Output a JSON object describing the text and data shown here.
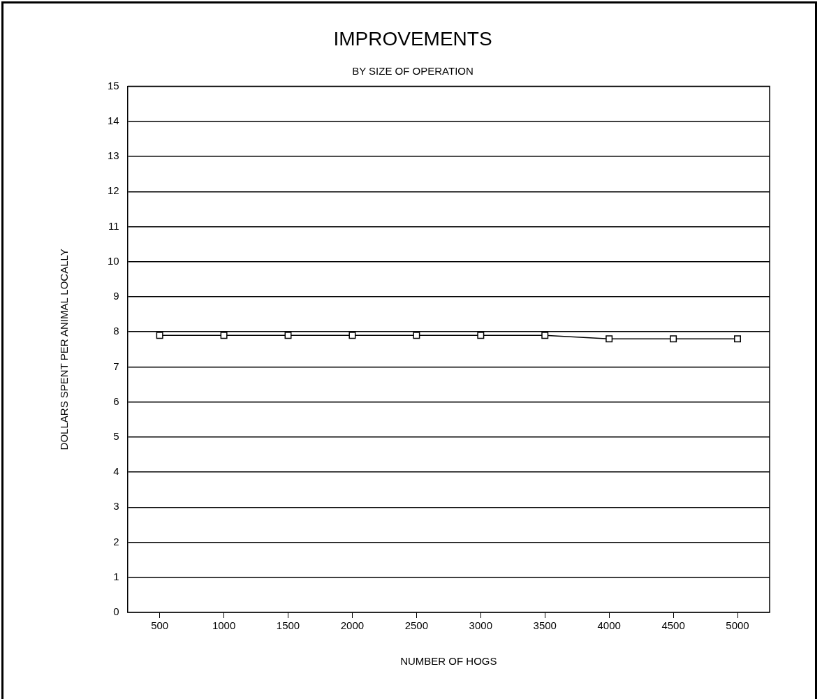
{
  "chart_data": {
    "type": "line",
    "title": "IMPROVEMENTS",
    "subtitle": "BY SIZE OF OPERATION",
    "xlabel": "NUMBER OF HOGS",
    "ylabel": "DOLLARS SPENT PER ANIMAL LOCALLY",
    "categories": [
      "500",
      "1000",
      "1500",
      "2000",
      "2500",
      "3000",
      "3500",
      "4000",
      "4500",
      "5000"
    ],
    "series": [
      {
        "color": "#000000",
        "values": [
          7.9,
          7.9,
          7.9,
          7.9,
          7.9,
          7.9,
          7.9,
          7.8,
          7.8,
          7.8
        ]
      }
    ],
    "ylim": [
      0,
      15
    ],
    "yticks": [
      0,
      1,
      2,
      3,
      4,
      5,
      6,
      7,
      8,
      9,
      10,
      11,
      12,
      13,
      14,
      15
    ],
    "grid": "y",
    "legend": false,
    "marker": "square",
    "line_style": "solid"
  }
}
